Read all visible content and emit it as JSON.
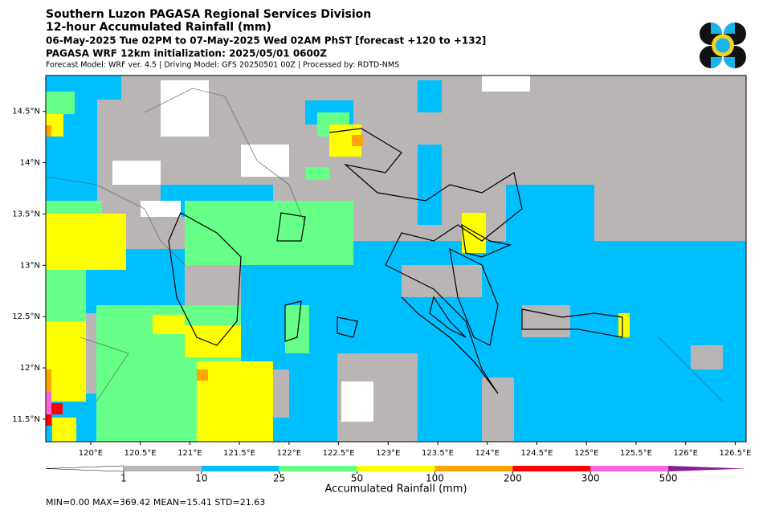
{
  "header": {
    "title": "Southern Luzon PAGASA Regional Services Division",
    "subtitle": "12-hour Accumulated Rainfall (mm)",
    "period": "06-May-2025 Tue 02PM to 07-May-2025 Wed 02AM PhST [forecast +120 to +132]",
    "model_init": "PAGASA WRF 12km initialization: 2025/05/01 0600Z",
    "credits": "Forecast Model: WRF ver. 4.5 | Driving Model: GFS 20250501 00Z | Processed by: RDTD-NMS"
  },
  "map": {
    "lon_extent": [
      119.547,
      126.61
    ],
    "lat_extent": [
      11.28,
      14.85
    ],
    "lon_ticks": [
      {
        "value": 120,
        "label": "120°E"
      },
      {
        "value": 120.5,
        "label": "120.5°E"
      },
      {
        "value": 121,
        "label": "121°E"
      },
      {
        "value": 121.5,
        "label": "121.5°E"
      },
      {
        "value": 122,
        "label": "122°E"
      },
      {
        "value": 122.5,
        "label": "122.5°E"
      },
      {
        "value": 123,
        "label": "123°E"
      },
      {
        "value": 123.5,
        "label": "123.5°E"
      },
      {
        "value": 124,
        "label": "124°E"
      },
      {
        "value": 124.5,
        "label": "124.5°E"
      },
      {
        "value": 125,
        "label": "125°E"
      },
      {
        "value": 125.5,
        "label": "125.5°E"
      },
      {
        "value": 126,
        "label": "126°E"
      },
      {
        "value": 126.5,
        "label": "126.5°E"
      }
    ],
    "lat_ticks": [
      {
        "value": 11.5,
        "label": "11.5°N"
      },
      {
        "value": 12,
        "label": "12°N"
      },
      {
        "value": 12.5,
        "label": "12.5°N"
      },
      {
        "value": 13,
        "label": "13°N"
      },
      {
        "value": 13.5,
        "label": "13.5°N"
      },
      {
        "value": 14,
        "label": "14°N"
      },
      {
        "value": 14.5,
        "label": "14.5°N"
      }
    ]
  },
  "colorbar": {
    "label": "Accumulated Rainfall (mm)",
    "levels": [
      1,
      10,
      25,
      50,
      100,
      200,
      300,
      500
    ],
    "colors": [
      "#bab5b5",
      "#00bfff",
      "#66ff88",
      "#ffff00",
      "#ffa500",
      "#ff0000",
      "#ff66dd"
    ],
    "under_color": "#ffffff",
    "over_color": "#8b1a9b"
  },
  "stats": "MIN=0.00   MAX=369.42   MEAN=15.41   STD=21.63"
}
